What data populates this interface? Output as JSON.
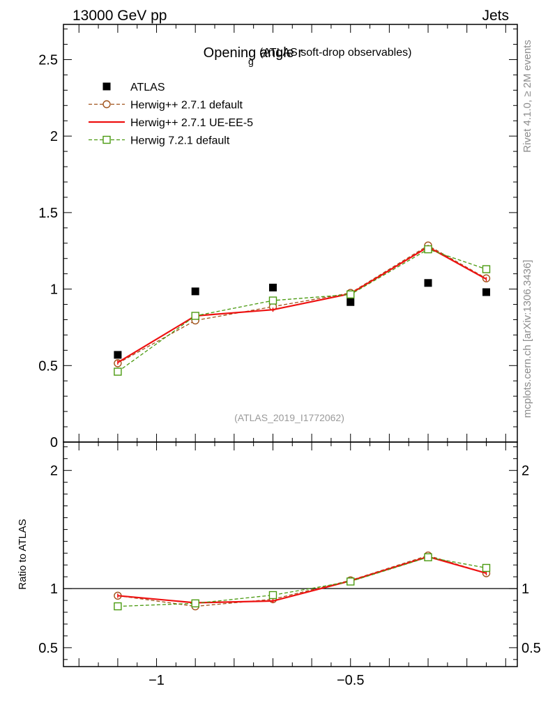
{
  "header": {
    "left_label": "13000 GeV pp",
    "right_label": "Jets"
  },
  "side_labels": {
    "rivet": "Rivet 4.1.0, ≥ 2M events",
    "mcplots": "mcplots.cern.ch [arXiv:1306.3436]"
  },
  "chart_data": [
    {
      "type": "line",
      "panel": "main",
      "title": "Opening angle r",
      "title_subscript": "g",
      "subtitle": "(ATLAS soft-drop observables)",
      "watermark": "(ATLAS_2019_I1772062)",
      "xlim": [
        -1.24,
        -0.07
      ],
      "ylim": [
        0,
        2.73
      ],
      "yticks": [
        {
          "value": 0.5,
          "label": "0.5"
        },
        {
          "value": 1,
          "label": "1"
        },
        {
          "value": 1.5,
          "label": "1.5"
        },
        {
          "value": 2,
          "label": "2"
        },
        {
          "value": 2.5,
          "label": "2.5"
        }
      ],
      "ytick_zero_label": "0",
      "legend_position": "top-left",
      "x": [
        -1.1,
        -0.9,
        -0.7,
        -0.5,
        -0.3,
        -0.15
      ],
      "series": [
        {
          "name": "ATLAS",
          "style": "data",
          "color": "#000000",
          "marker": "square-filled",
          "values": [
            0.57,
            0.985,
            1.01,
            0.915,
            1.04,
            0.98
          ]
        },
        {
          "name": "Herwig++ 2.7.1 default",
          "style": "dashed",
          "color": "#a0521a",
          "marker": "circle-open",
          "values": [
            0.515,
            0.795,
            0.885,
            0.975,
            1.285,
            1.07
          ]
        },
        {
          "name": "Herwig++ 2.7.1 UE-EE-5",
          "style": "solid",
          "color": "#ee1111",
          "marker": "none",
          "values": [
            0.52,
            0.825,
            0.865,
            0.97,
            1.275,
            1.065
          ]
        },
        {
          "name": "Herwig 7.2.1 default",
          "style": "dashed",
          "color": "#4a9a10",
          "marker": "square-open",
          "values": [
            0.46,
            0.825,
            0.925,
            0.965,
            1.26,
            1.13
          ]
        }
      ]
    },
    {
      "type": "line",
      "panel": "ratio",
      "ylabel": "Ratio to ATLAS",
      "ylim": [
        0.34,
        2.24
      ],
      "reference_line": 1,
      "yticks": [
        {
          "value": 0.5,
          "label": "0.5"
        },
        {
          "value": 1,
          "label": "1"
        },
        {
          "value": 2,
          "label": "2"
        }
      ],
      "xticks": [
        {
          "value": -1,
          "label": "−1"
        },
        {
          "value": -0.5,
          "label": "−0.5"
        }
      ],
      "x": [
        -1.1,
        -0.9,
        -0.7,
        -0.5,
        -0.3,
        -0.15
      ],
      "series": [
        {
          "name": "Herwig++ 2.7.1 default",
          "style": "dashed",
          "color": "#a0521a",
          "marker": "circle-open",
          "values": [
            0.94,
            0.85,
            0.91,
            1.07,
            1.28,
            1.13
          ]
        },
        {
          "name": "Herwig++ 2.7.1 UE-EE-5",
          "style": "solid",
          "color": "#ee1111",
          "marker": "none",
          "values": [
            0.94,
            0.88,
            0.895,
            1.065,
            1.27,
            1.13
          ]
        },
        {
          "name": "Herwig 7.2.1 default",
          "style": "dashed",
          "color": "#4a9a10",
          "marker": "square-open",
          "values": [
            0.85,
            0.875,
            0.945,
            1.06,
            1.265,
            1.175
          ]
        }
      ]
    }
  ]
}
